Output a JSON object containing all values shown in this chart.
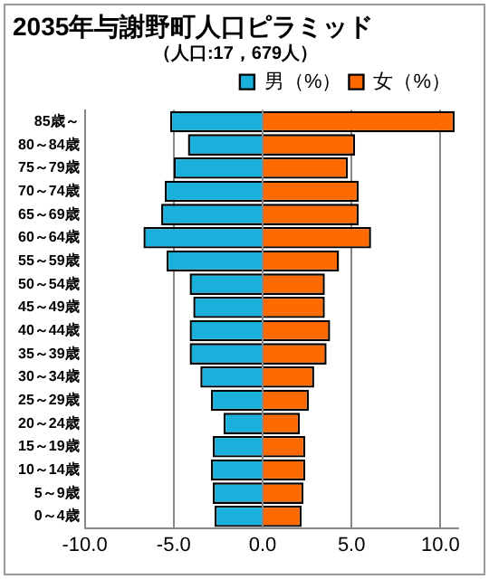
{
  "chart_data": {
    "type": "bar",
    "orientation": "horizontal",
    "stacked": true,
    "title": "2035年与謝野町人口ピラミッド",
    "subtitle": "（人口:17，679人）",
    "categories": [
      "85歳～",
      "80～84歳",
      "75～79歳",
      "70～74歳",
      "65～69歳",
      "60～64歳",
      "55～59歳",
      "50～54歳",
      "45～49歳",
      "40～44歳",
      "35～39歳",
      "30～34歳",
      "25～29歳",
      "20～24歳",
      "15～19歳",
      "10～14歳",
      "5～9歳",
      "0～4歳"
    ],
    "series": [
      {
        "name": "男（%）",
        "color": "#1ab0dc",
        "values": [
          -5.2,
          -4.2,
          -5.0,
          -5.5,
          -5.7,
          -6.7,
          -5.4,
          -4.1,
          -3.9,
          -4.1,
          -4.1,
          -3.5,
          -2.9,
          -2.2,
          -2.8,
          -2.9,
          -2.8,
          -2.7
        ]
      },
      {
        "name": "女（%）",
        "color": "#ff6a00",
        "values": [
          10.8,
          5.2,
          4.8,
          5.4,
          5.4,
          6.1,
          4.3,
          3.5,
          3.5,
          3.8,
          3.6,
          2.9,
          2.6,
          2.1,
          2.4,
          2.4,
          2.3,
          2.2
        ]
      }
    ],
    "xlim": [
      -10,
      11
    ],
    "xticks": [
      {
        "value": -10,
        "label": "-10.0"
      },
      {
        "value": -5,
        "label": "-5.0"
      },
      {
        "value": 0,
        "label": "0.0"
      },
      {
        "value": 5,
        "label": "5.0"
      },
      {
        "value": 10,
        "label": "10.0"
      }
    ],
    "grid": "x",
    "legend": "top right"
  }
}
